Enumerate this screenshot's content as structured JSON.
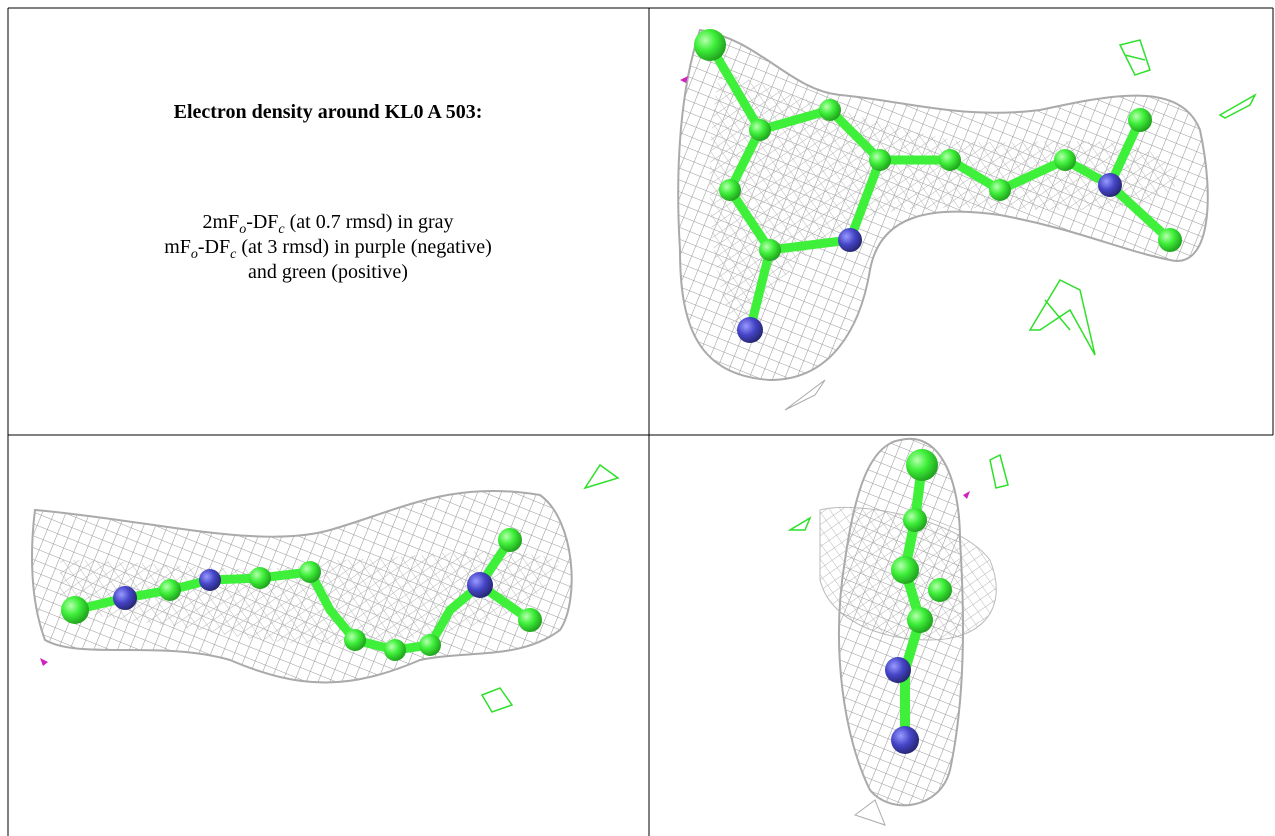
{
  "caption": {
    "title": "Electron density around KL0 A 503:",
    "lines": [
      {
        "segments": [
          {
            "text": "2mF",
            "sub": false
          },
          {
            "text": "o",
            "sub": true
          },
          {
            "text": "-DF",
            "sub": false
          },
          {
            "text": "c",
            "sub": true
          },
          {
            "text": " (at 0.7 rmsd) in gray",
            "sub": false
          }
        ]
      },
      {
        "segments": [
          {
            "text": "mF",
            "sub": false
          },
          {
            "text": "o",
            "sub": true
          },
          {
            "text": "-DF",
            "sub": false
          },
          {
            "text": "c",
            "sub": true
          },
          {
            "text": " (at 3 rmsd) in purple (negative)",
            "sub": false
          }
        ]
      },
      {
        "segments": [
          {
            "text": "and green (positive)",
            "sub": false
          }
        ]
      }
    ]
  }
}
